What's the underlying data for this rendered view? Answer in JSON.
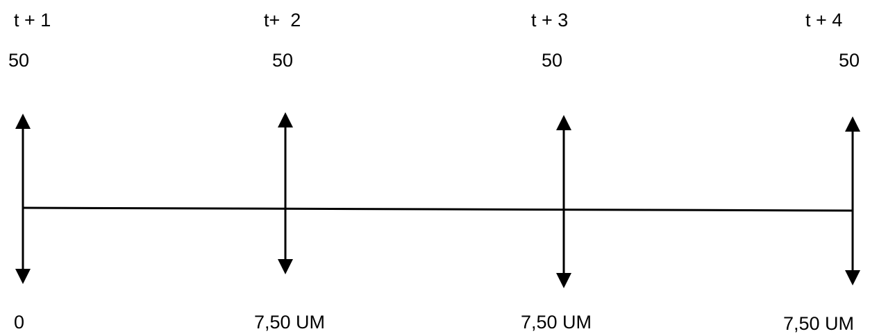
{
  "timeline": {
    "periods": [
      {
        "label": "t + 1",
        "inflow": "50",
        "outflow": "0"
      },
      {
        "label": "t+  2",
        "inflow": "50",
        "outflow": "7,50 UM"
      },
      {
        "label": "t + 3",
        "inflow": "50",
        "outflow": "7,50 UM"
      },
      {
        "label": "t + 4",
        "inflow": "50",
        "outflow": "7,50 UM"
      }
    ],
    "color": "#000000"
  }
}
